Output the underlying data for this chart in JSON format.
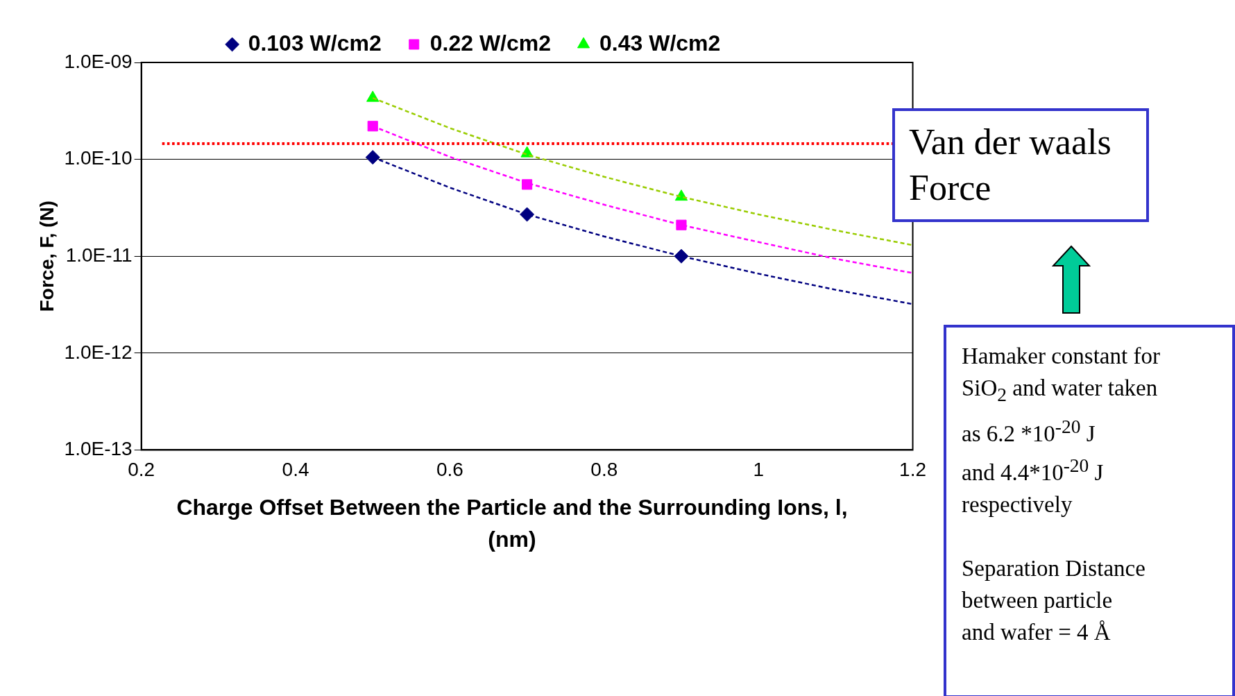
{
  "chart_data": {
    "type": "scatter",
    "xlabel": "Charge Offset Between the Particle and the Surrounding Ions, l,  (nm)",
    "ylabel": "Force, F, (N)",
    "log": "y",
    "grid": "y",
    "legend": "top",
    "xlim": [
      0.2,
      1.2
    ],
    "xticks": [
      0.2,
      0.4,
      0.6,
      0.8,
      1,
      1.2
    ],
    "ylim": [
      1e-13,
      1e-09
    ],
    "yticks": [
      {
        "value": 1e-13,
        "label": "1.0E-13"
      },
      {
        "value": 1e-12,
        "label": "1.0E-12"
      },
      {
        "value": 1e-11,
        "label": "1.0E-11"
      },
      {
        "value": 1e-10,
        "label": "1.0E-10"
      },
      {
        "value": 1e-09,
        "label": "1.0E-09"
      }
    ],
    "series": [
      {
        "name": "0.103 W/cm2",
        "color": "#000080",
        "marker": "diamond",
        "x": [
          0.5,
          0.7,
          0.9
        ],
        "values": [
          1.05e-10,
          2.7e-11,
          1e-11
        ]
      },
      {
        "name": "0.22 W/cm2",
        "color": "#ff00ff",
        "marker": "square",
        "x": [
          0.5,
          0.7,
          0.9
        ],
        "values": [
          2.2e-10,
          5.5e-11,
          2.1e-11
        ]
      },
      {
        "name": "0.43 W/cm2",
        "color": "#00ff00",
        "marker": "triangle",
        "x": [
          0.5,
          0.7,
          0.9
        ],
        "values": [
          4.3e-10,
          1.15e-10,
          4.1e-11
        ]
      },
      {
        "type": "line",
        "color": "#000080",
        "marker": "none",
        "line_style": "dashed",
        "x": [
          0.5,
          0.6,
          0.7,
          0.8,
          0.9,
          1.0,
          1.1,
          1.2
        ],
        "values": [
          1.05e-10,
          5.1e-11,
          2.7e-11,
          1.6e-11,
          1e-11,
          6.6e-12,
          4.5e-12,
          3.2e-12
        ]
      },
      {
        "type": "line",
        "color": "#ff00ff",
        "marker": "none",
        "line_style": "dashed",
        "x": [
          0.5,
          0.6,
          0.7,
          0.8,
          0.9,
          1.0,
          1.1,
          1.2
        ],
        "values": [
          2.2e-10,
          1.06e-10,
          5.7e-11,
          3.4e-11,
          2.1e-11,
          1.4e-11,
          9.4e-12,
          6.7e-12
        ]
      },
      {
        "type": "line",
        "color": "#99cc00",
        "marker": "none",
        "line_style": "dashed",
        "x": [
          0.5,
          0.6,
          0.7,
          0.8,
          0.9,
          1.0,
          1.1,
          1.2
        ],
        "values": [
          4.3e-10,
          2.1e-10,
          1.12e-10,
          6.6e-11,
          4.1e-11,
          2.7e-11,
          1.85e-11,
          1.3e-11
        ]
      }
    ],
    "ref_lines": [
      {
        "axis": "y",
        "value": 1.45e-10,
        "label": "Van der waals Force",
        "color": "#ff0000",
        "line_style": "dotted"
      }
    ],
    "annotations": [
      "Hamaker constant for\nSiO$_{2}$ and water taken\nas 6.2 *10$^{-20}$ J\nand 4.4*10$^{-20}$ J\nrespectively\n\nSeparation Distance\nbetween particle\nand wafer = 4 Å"
    ]
  }
}
